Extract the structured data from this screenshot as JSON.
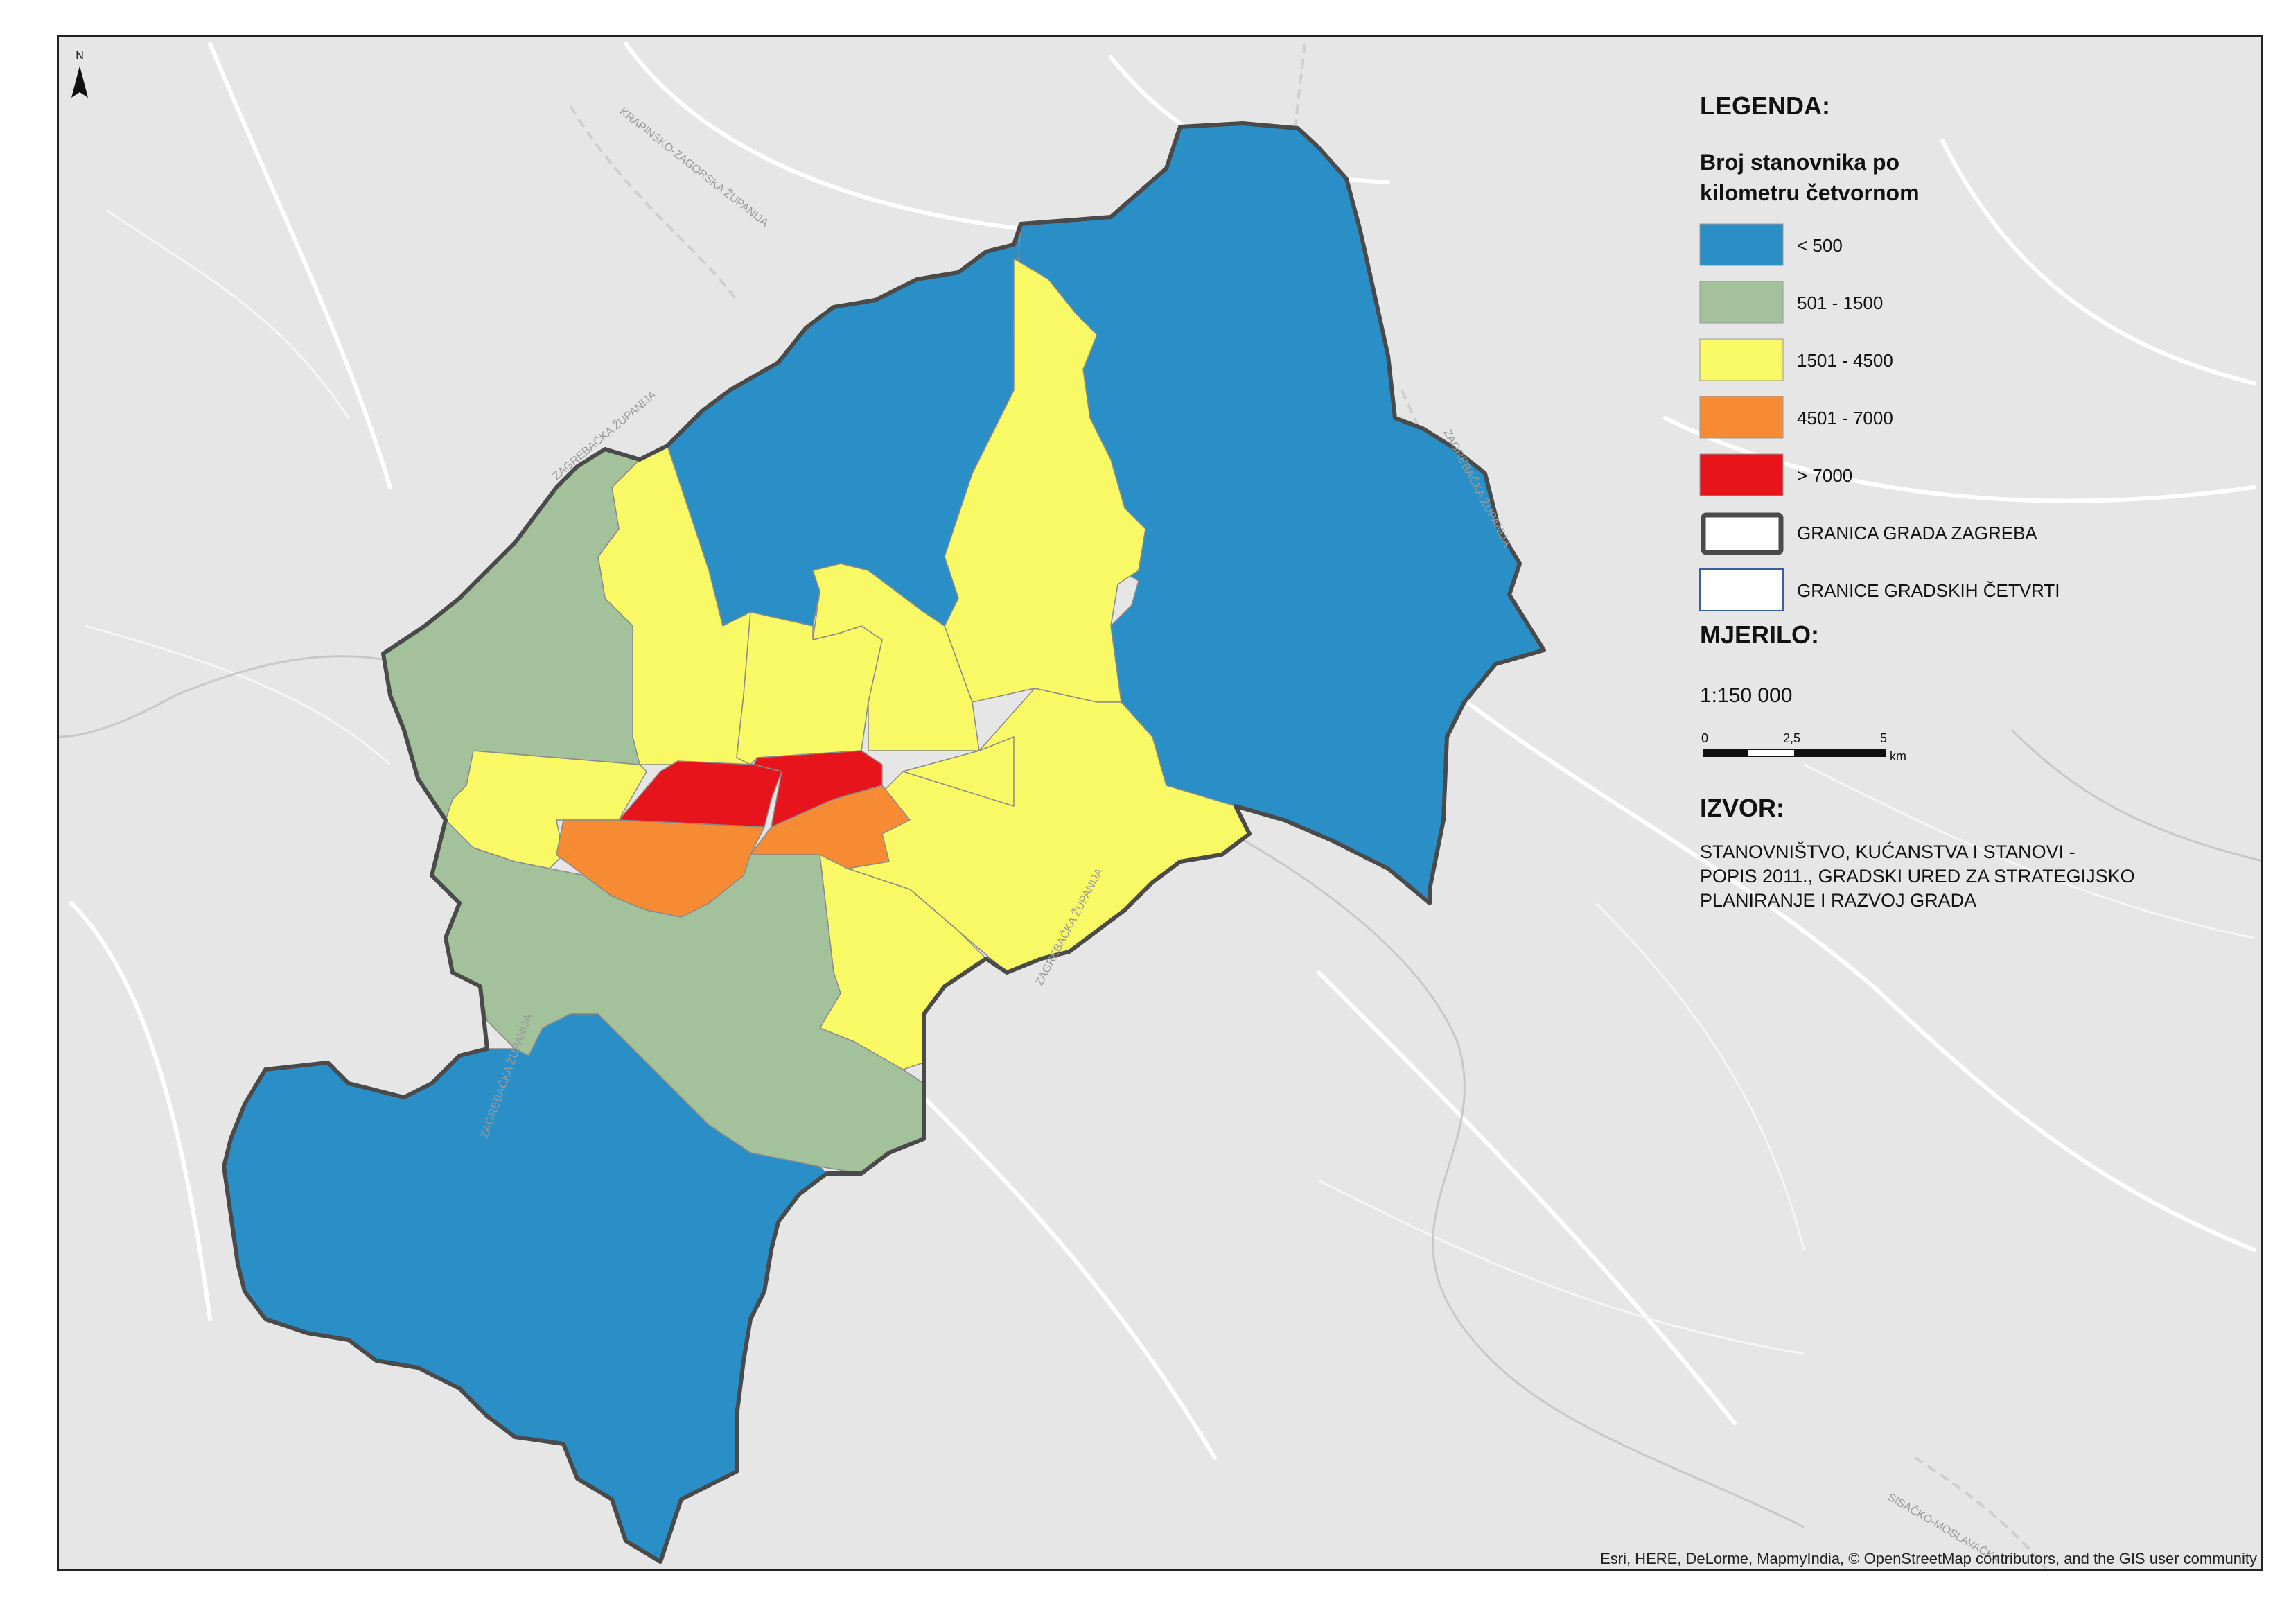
{
  "legend": {
    "title": "LEGENDA:",
    "subtitle_line1": "Broj stanovnika po",
    "subtitle_line2": "kilometru četvornom",
    "classes": [
      {
        "label": "< 500",
        "color": "#2b8fc7"
      },
      {
        "label": "501 - 1500",
        "color": "#a3c29b"
      },
      {
        "label": "1501 - 4500",
        "color": "#f9f865"
      },
      {
        "label": "4501 - 7000",
        "color": "#f68b33"
      },
      {
        "label": "> 7000",
        "color": "#e8141c"
      }
    ],
    "boundary_city": "GRANICA GRADA ZAGREBA",
    "boundary_districts": "GRANICE GRADSKIH ČETVRTI"
  },
  "scale": {
    "title": "MJERILO:",
    "ratio": "1:150 000",
    "ticks": [
      "0",
      "2,5",
      "5"
    ],
    "unit": "km"
  },
  "source": {
    "title": "IZVOR:",
    "line1": "STANOVNIŠTVO, KUĆANSTVA I STANOVI -",
    "line2": "POPIS 2011., GRADSKI URED ZA STRATEGIJSKO",
    "line3": "PLANIRANJE I RAZVOJ GRADA"
  },
  "north_arrow": {
    "label": "N",
    "icon": "north-arrow-icon"
  },
  "attribution": "Esri, HERE, DeLorme, MapmyIndia, © OpenStreetMap contributors, and the GIS user community",
  "basemap_labels": [
    "KRAPINSKO-ZAGORSKA ŽUPANIJA",
    "ZAGREBAČKA ŽUPANIJA",
    "ZAGREBAČKA ŽUPANIJA",
    "ZAGREBAČKA ŽUPANIJA",
    "SISAČKO-MOSLAVAČKA",
    "ZAGREBAČKA ŽUPANIJA"
  ]
}
